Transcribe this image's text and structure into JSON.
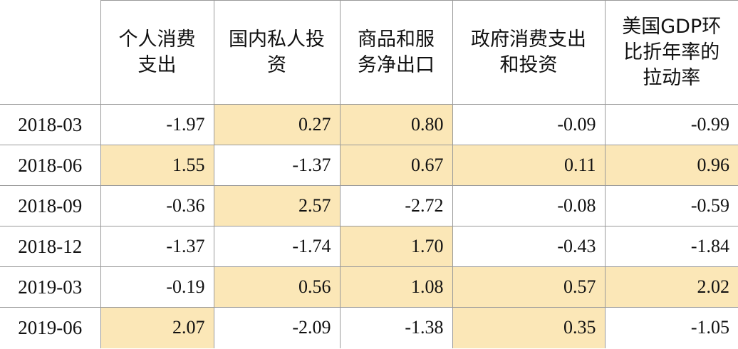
{
  "table": {
    "headers": [
      "",
      "个人消费支出",
      "国内私人投资",
      "商品和服务净出口",
      "政府消费支出和投资",
      "美国GDP环比折年率的拉动率"
    ],
    "header_lines": [
      [
        ""
      ],
      [
        "个人消费",
        "支出"
      ],
      [
        "国内私人投",
        "资"
      ],
      [
        "商品和服",
        "务净出口"
      ],
      [
        "政府消费支出",
        "和投资"
      ],
      [
        "美国GDP环",
        "比折年率的",
        "拉动率"
      ]
    ],
    "rows": [
      {
        "date": "2018-03",
        "values": [
          "-1.97",
          "0.27",
          "0.80",
          "-0.09",
          "-0.99"
        ],
        "highlight": [
          false,
          true,
          true,
          false,
          false
        ]
      },
      {
        "date": "2018-06",
        "values": [
          "1.55",
          "-1.37",
          "0.67",
          "0.11",
          "0.96"
        ],
        "highlight": [
          true,
          false,
          true,
          true,
          true
        ]
      },
      {
        "date": "2018-09",
        "values": [
          "-0.36",
          "2.57",
          "-2.72",
          "-0.08",
          "-0.59"
        ],
        "highlight": [
          false,
          true,
          false,
          false,
          false
        ]
      },
      {
        "date": "2018-12",
        "values": [
          "-1.37",
          "-1.74",
          "1.70",
          "-0.43",
          "-1.84"
        ],
        "highlight": [
          false,
          false,
          true,
          false,
          false
        ]
      },
      {
        "date": "2019-03",
        "values": [
          "-0.19",
          "0.56",
          "1.08",
          "0.57",
          "2.02"
        ],
        "highlight": [
          false,
          true,
          true,
          true,
          true
        ]
      },
      {
        "date": "2019-06",
        "values": [
          "2.07",
          "-2.09",
          "-1.38",
          "0.35",
          "-1.05"
        ],
        "highlight": [
          true,
          false,
          false,
          true,
          false
        ]
      }
    ],
    "highlight_color": "#fbe7b7",
    "border_color": "#9a9a9a"
  }
}
